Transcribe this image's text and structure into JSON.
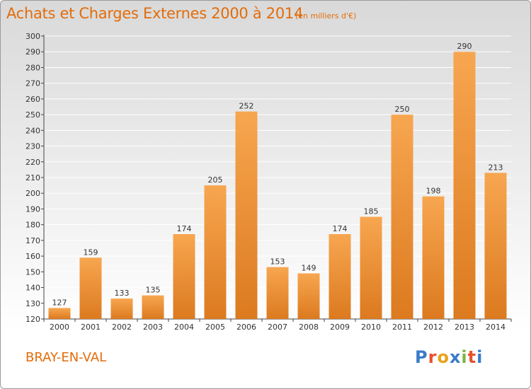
{
  "header": {
    "title": "Achats et Charges Externes 2000 à 2014",
    "subtitle": "(en milliers d'€)"
  },
  "footer": {
    "commune": "BRAY-EN-VAL",
    "logo": {
      "text": "Proxiti",
      "letter_colors": [
        "#3a7bc8",
        "#e8512d",
        "#e8a21c",
        "#3a7bc8",
        "#7cb342",
        "#e8512d",
        "#3a7bc8"
      ]
    }
  },
  "colors": {
    "bar_light": "#f7a650",
    "bar_dark": "#dc7a1f",
    "title": "#e36c0a",
    "grid": "#ffffff"
  },
  "chart_data": {
    "type": "bar",
    "categories": [
      "2000",
      "2001",
      "2002",
      "2003",
      "2004",
      "2005",
      "2006",
      "2007",
      "2008",
      "2009",
      "2010",
      "2011",
      "2012",
      "2013",
      "2014"
    ],
    "values": [
      127,
      159,
      133,
      135,
      174,
      205,
      252,
      153,
      149,
      174,
      185,
      250,
      198,
      290,
      213
    ],
    "title": "Achats et Charges Externes 2000 à 2014",
    "subtitle": "(en milliers d'€)",
    "ylim": [
      120,
      300
    ],
    "ytick_step": 10,
    "grid": true,
    "data_labels": true
  }
}
